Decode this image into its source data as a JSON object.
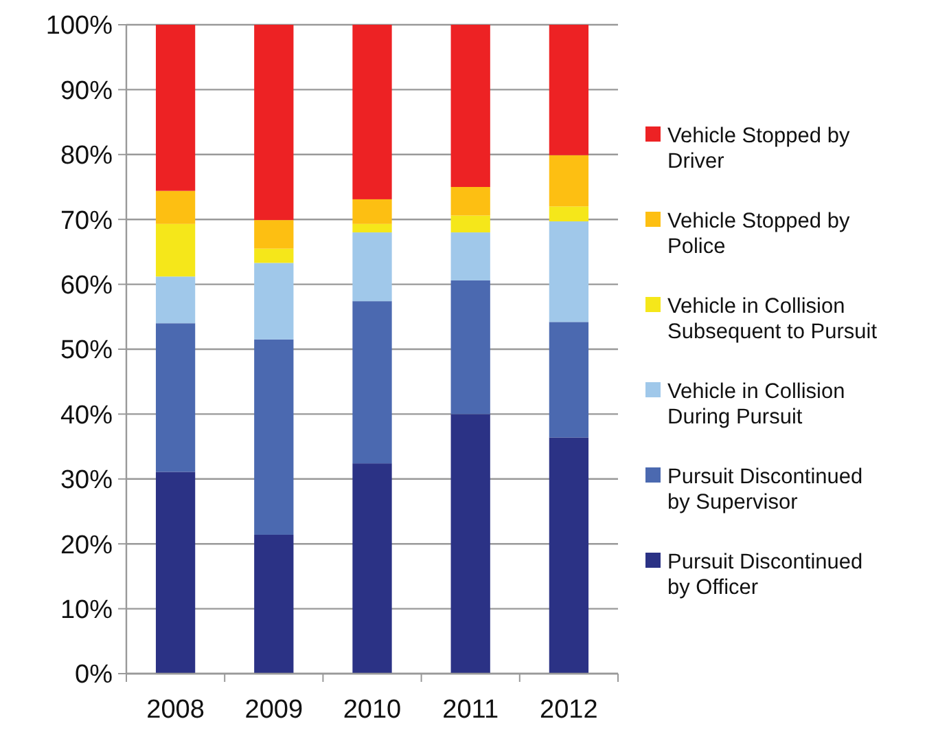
{
  "chart_data": {
    "type": "bar",
    "stacked": true,
    "categories": [
      "2008",
      "2009",
      "2010",
      "2011",
      "2012"
    ],
    "series": [
      {
        "name": "Pursuit Discontinued by Officer",
        "color": "#2b3285",
        "values": [
          31.1,
          21.4,
          32.4,
          40.0,
          36.4
        ]
      },
      {
        "name": "Pursuit Discontinued by Supervisor",
        "color": "#4b69b0",
        "values": [
          22.9,
          30.1,
          25.0,
          20.6,
          17.8
        ]
      },
      {
        "name": "Vehicle in Collision During Pursuit",
        "color": "#a0c8ea",
        "values": [
          7.2,
          11.8,
          10.6,
          7.4,
          15.5
        ]
      },
      {
        "name": "Vehicle in Collision Subsequent to Pursuit",
        "color": "#f5e71a",
        "values": [
          8.1,
          2.2,
          1.3,
          2.6,
          2.3
        ]
      },
      {
        "name": "Vehicle Stopped by Police",
        "color": "#fdbf12",
        "values": [
          5.1,
          4.4,
          3.8,
          4.4,
          7.9
        ]
      },
      {
        "name": "Vehicle Stopped by Driver",
        "color": "#ed2224",
        "values": [
          25.6,
          30.1,
          26.9,
          25.0,
          20.1
        ]
      }
    ],
    "ylim": [
      0,
      100
    ],
    "yticks": [
      {
        "value": 0,
        "label": "0%"
      },
      {
        "value": 10,
        "label": "10%"
      },
      {
        "value": 20,
        "label": "20%"
      },
      {
        "value": 30,
        "label": "30%"
      },
      {
        "value": 40,
        "label": "40%"
      },
      {
        "value": 50,
        "label": "50%"
      },
      {
        "value": 60,
        "label": "60%"
      },
      {
        "value": 70,
        "label": "70%"
      },
      {
        "value": 80,
        "label": "80%"
      },
      {
        "value": 90,
        "label": "90%"
      },
      {
        "value": 100,
        "label": "100%"
      }
    ],
    "grid": "y",
    "legend": "right"
  }
}
